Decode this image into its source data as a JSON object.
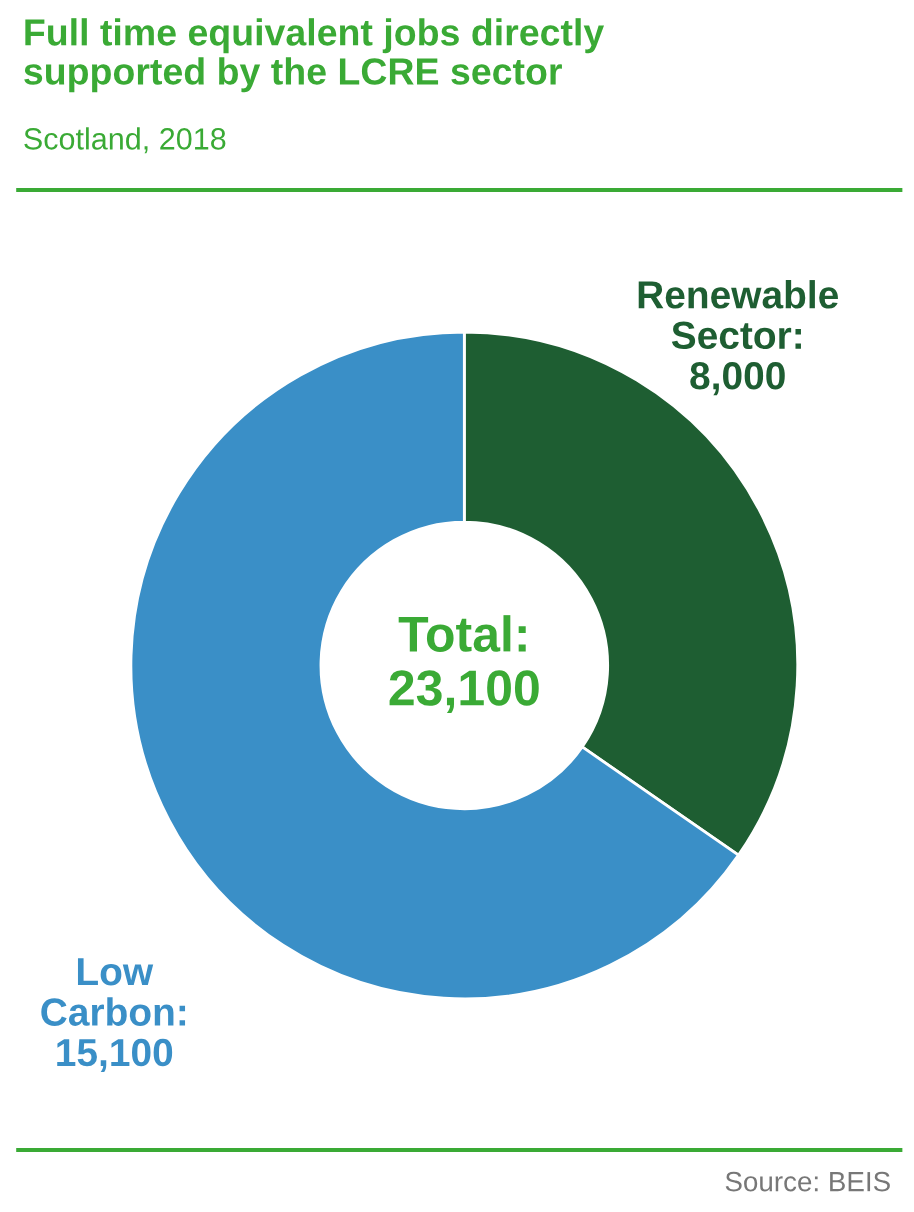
{
  "chart_data": {
    "type": "donut",
    "title": "Full time equivalent jobs directly\nsupported by the LCRE sector",
    "subtitle": "Scotland, 2018",
    "categories": [
      null,
      null
    ],
    "values": [
      8000,
      15100
    ],
    "colors": [
      "#1e5e32",
      "#3a8fc7"
    ],
    "value_labels": [
      "Renewable\nSector:\n8,000",
      "Low\nCarbon:\n15,100"
    ],
    "annotations": [
      "Total:\n23,100",
      "Source: BEIS"
    ],
    "legend": false
  }
}
